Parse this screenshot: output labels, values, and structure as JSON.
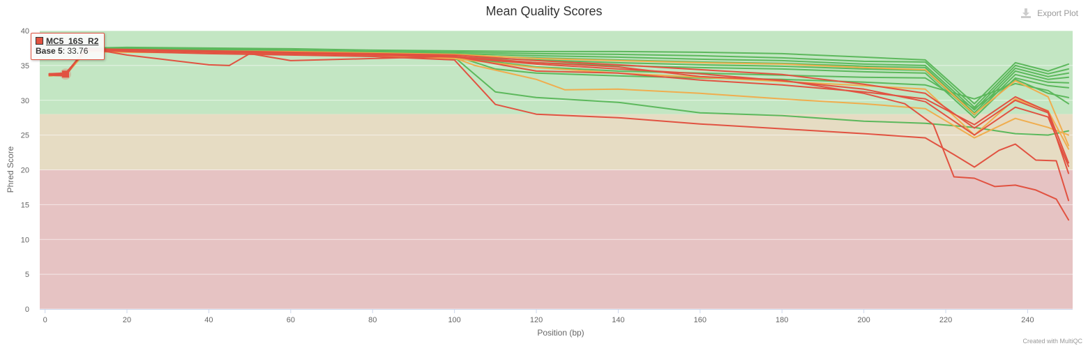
{
  "header": {
    "export_label": "Export Plot",
    "credit": "Created with MultiQC"
  },
  "tooltip": {
    "sample": "MC5_16S_R2",
    "base_label": "Base 5",
    "value_text": ": 33.76",
    "sample_color": "#e15241"
  },
  "colors": {
    "pass": "#5cb85c",
    "warn": "#f0ad4e",
    "fail": "#e15241",
    "bg_pass": "#c3e6c3",
    "bg_warn": "#e6dcc3",
    "bg_fail": "#e6c3c3"
  },
  "chart_data": {
    "type": "line",
    "title": "Mean Quality Scores",
    "xlabel": "Position (bp)",
    "ylabel": "Phred Score",
    "xlim": [
      0,
      251
    ],
    "ylim": [
      0,
      40
    ],
    "xticks": [
      0,
      20,
      40,
      60,
      80,
      100,
      120,
      140,
      160,
      180,
      200,
      220,
      240
    ],
    "yticks": [
      0,
      5,
      10,
      15,
      20,
      25,
      30,
      35,
      40
    ],
    "bands": [
      {
        "from": 28,
        "to": 40,
        "color": "#c3e6c3"
      },
      {
        "from": 20,
        "to": 28,
        "color": "#e6dcc3"
      },
      {
        "from": 0,
        "to": 20,
        "color": "#e6c3c3"
      }
    ],
    "highlight": {
      "x": 5,
      "y": 33.76
    },
    "series": [
      {
        "status": "pass",
        "x": [
          1,
          5,
          10,
          20,
          40,
          60,
          80,
          100,
          120,
          140,
          160,
          180,
          200,
          215,
          227,
          237,
          245,
          250
        ],
        "y": [
          33.6,
          33.7,
          37.5,
          37.6,
          37.5,
          37.4,
          37.2,
          37.1,
          37.0,
          37.0,
          36.9,
          36.7,
          36.2,
          35.8,
          29.5,
          35.4,
          34.2,
          35.2
        ]
      },
      {
        "status": "pass",
        "x": [
          1,
          5,
          10,
          20,
          40,
          60,
          80,
          100,
          120,
          140,
          160,
          180,
          200,
          215,
          227,
          237,
          245,
          250
        ],
        "y": [
          33.7,
          33.8,
          37.4,
          37.5,
          37.4,
          37.2,
          37.0,
          36.9,
          36.7,
          36.6,
          36.4,
          36.1,
          35.6,
          35.5,
          29.0,
          35.0,
          33.8,
          34.5
        ]
      },
      {
        "status": "pass",
        "x": [
          1,
          5,
          10,
          20,
          40,
          60,
          80,
          100,
          120,
          140,
          160,
          180,
          200,
          215,
          227,
          237,
          245,
          250
        ],
        "y": [
          33.5,
          33.6,
          37.3,
          37.4,
          37.3,
          37.1,
          36.9,
          36.7,
          36.4,
          36.2,
          35.9,
          35.7,
          35.2,
          35.0,
          28.6,
          34.6,
          33.4,
          33.9
        ]
      },
      {
        "status": "pass",
        "x": [
          1,
          5,
          10,
          20,
          40,
          60,
          80,
          100,
          120,
          140,
          160,
          180,
          200,
          215,
          227,
          237,
          245,
          250
        ],
        "y": [
          33.6,
          33.7,
          37.2,
          37.3,
          37.2,
          37.0,
          36.7,
          36.5,
          36.1,
          35.8,
          35.5,
          35.3,
          34.9,
          34.7,
          28.2,
          34.2,
          33.0,
          33.3
        ]
      },
      {
        "status": "pass",
        "x": [
          1,
          5,
          10,
          20,
          40,
          60,
          80,
          100,
          120,
          140,
          160,
          180,
          200,
          215,
          227,
          237,
          245,
          250
        ],
        "y": [
          33.7,
          33.8,
          37.1,
          37.2,
          37.0,
          36.8,
          36.5,
          36.2,
          35.8,
          35.4,
          35.1,
          34.9,
          34.5,
          34.3,
          27.9,
          33.7,
          32.6,
          32.5
        ]
      },
      {
        "status": "pass",
        "x": [
          1,
          5,
          10,
          20,
          40,
          60,
          80,
          100,
          120,
          140,
          160,
          180,
          200,
          215,
          227,
          237,
          245,
          250
        ],
        "y": [
          33.5,
          33.6,
          37.0,
          37.1,
          36.9,
          36.6,
          36.3,
          35.9,
          35.4,
          35.0,
          34.7,
          34.5,
          34.1,
          33.9,
          27.5,
          33.2,
          32.1,
          31.8
        ]
      },
      {
        "status": "pass",
        "x": [
          1,
          5,
          10,
          20,
          40,
          60,
          80,
          100,
          110,
          120,
          140,
          160,
          180,
          200,
          215,
          227,
          237,
          245,
          250
        ],
        "y": [
          33.6,
          33.7,
          37.3,
          37.4,
          37.2,
          37.0,
          36.8,
          36.4,
          34.5,
          33.9,
          33.5,
          33.2,
          33.0,
          32.6,
          32.2,
          30.2,
          32.4,
          31.4,
          29.5
        ]
      },
      {
        "status": "pass",
        "x": [
          1,
          5,
          10,
          20,
          40,
          60,
          80,
          100,
          110,
          120,
          140,
          160,
          180,
          200,
          215,
          227,
          237,
          245,
          250
        ],
        "y": [
          33.7,
          33.8,
          37.3,
          37.3,
          37.1,
          36.8,
          36.6,
          36.2,
          31.2,
          30.4,
          29.7,
          28.2,
          27.8,
          27.0,
          26.7,
          26.1,
          25.2,
          25.0,
          25.6
        ]
      },
      {
        "status": "pass",
        "x": [
          1,
          5,
          10,
          20,
          40,
          60,
          80,
          100,
          120,
          140,
          160,
          180,
          200,
          215,
          227,
          237,
          245,
          250
        ],
        "y": [
          33.6,
          33.7,
          37.2,
          37.3,
          37.0,
          36.8,
          36.5,
          36.2,
          34.8,
          34.2,
          33.9,
          33.6,
          33.3,
          33.2,
          28.8,
          33.0,
          31.0,
          30.4
        ]
      },
      {
        "status": "warn",
        "x": [
          1,
          5,
          10,
          20,
          40,
          60,
          80,
          100,
          120,
          140,
          160,
          180,
          200,
          215,
          227,
          237,
          245,
          250
        ],
        "y": [
          33.6,
          33.7,
          37.2,
          37.0,
          37.1,
          37.0,
          36.8,
          36.6,
          36.0,
          35.7,
          35.4,
          35.2,
          34.7,
          34.4,
          28.0,
          32.8,
          30.5,
          23.5
        ]
      },
      {
        "status": "warn",
        "x": [
          1,
          5,
          10,
          20,
          40,
          60,
          80,
          100,
          105,
          120,
          127,
          140,
          160,
          180,
          200,
          215,
          227,
          237,
          245,
          250
        ],
        "y": [
          33.6,
          33.7,
          37.1,
          37.0,
          36.8,
          36.6,
          36.4,
          36.1,
          35.0,
          33.0,
          31.5,
          31.6,
          31.0,
          30.2,
          29.5,
          28.8,
          24.6,
          27.4,
          26.1,
          25.0
        ]
      },
      {
        "status": "warn",
        "x": [
          1,
          5,
          10,
          20,
          40,
          60,
          80,
          100,
          120,
          140,
          160,
          180,
          200,
          215,
          227,
          237,
          245,
          250
        ],
        "y": [
          33.5,
          33.6,
          37.0,
          36.9,
          36.8,
          36.6,
          36.4,
          36.0,
          34.7,
          33.9,
          33.3,
          32.7,
          32.1,
          31.6,
          25.0,
          30.2,
          28.5,
          23.0
        ]
      },
      {
        "status": "fail",
        "x": [
          1,
          5,
          10,
          20,
          40,
          60,
          80,
          100,
          110,
          120,
          140,
          160,
          180,
          200,
          215,
          222,
          227,
          233,
          237,
          242,
          247,
          250
        ],
        "y": [
          33.8,
          33.9,
          37.2,
          37.0,
          36.7,
          36.5,
          36.3,
          35.8,
          29.4,
          28.0,
          27.5,
          26.6,
          25.9,
          25.2,
          24.6,
          22.2,
          20.4,
          22.8,
          23.7,
          21.4,
          21.3,
          15.6
        ]
      },
      {
        "status": "fail",
        "x": [
          1,
          5,
          10,
          20,
          40,
          60,
          80,
          100,
          120,
          140,
          160,
          180,
          200,
          210,
          217,
          222,
          227,
          232,
          237,
          242,
          247,
          250
        ],
        "y": [
          33.8,
          33.7,
          37.3,
          37.2,
          37.0,
          36.7,
          36.6,
          36.3,
          35.4,
          34.8,
          33.4,
          32.9,
          31.0,
          29.5,
          26.5,
          19.0,
          18.8,
          17.6,
          17.8,
          17.1,
          15.8,
          12.8
        ]
      },
      {
        "status": "fail",
        "x": [
          1,
          5,
          10,
          20,
          40,
          60,
          80,
          100,
          120,
          140,
          160,
          180,
          200,
          215,
          227,
          237,
          245,
          250
        ],
        "y": [
          33.7,
          33.8,
          37.4,
          37.3,
          37.1,
          36.9,
          36.7,
          36.5,
          35.7,
          35.1,
          34.4,
          33.7,
          32.3,
          31.0,
          26.0,
          30.0,
          28.2,
          19.5
        ]
      },
      {
        "status": "fail",
        "x": [
          1,
          5,
          10,
          20,
          40,
          60,
          80,
          100,
          120,
          140,
          160,
          180,
          200,
          215,
          227,
          237,
          245,
          250
        ],
        "y": [
          33.6,
          33.7,
          37.3,
          37.2,
          36.9,
          36.7,
          36.5,
          36.2,
          35.2,
          34.5,
          33.8,
          32.8,
          31.6,
          29.8,
          25.0,
          29.0,
          27.6,
          20.5
        ]
      },
      {
        "status": "fail",
        "x": [
          1,
          5,
          10,
          20,
          30,
          40,
          45,
          50,
          60,
          80,
          100,
          120,
          140,
          160,
          180,
          200,
          215,
          227,
          237,
          245,
          250
        ],
        "y": [
          33.6,
          33.5,
          37.5,
          36.5,
          35.8,
          35.1,
          35.0,
          36.7,
          35.7,
          36.0,
          36.3,
          34.2,
          33.9,
          32.9,
          32.2,
          31.2,
          30.2,
          26.5,
          30.5,
          28.4,
          21.0
        ]
      }
    ]
  }
}
